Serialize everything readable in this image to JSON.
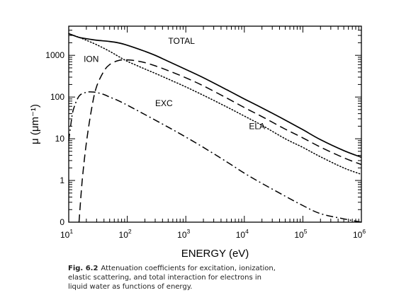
{
  "caption": {
    "fig_label": "Fig.  6.2",
    "text": "Attenuation coefficients for excitation, ionization, elastic scattering, and total interaction for electrons in liquid water as functions of energy."
  },
  "chart_data": {
    "type": "line",
    "title": "",
    "xlabel": "ENERGY  (eV)",
    "ylabel": "μ  (μm⁻¹)",
    "xscale": "log",
    "yscale": "log",
    "xlim": [
      10,
      1000000
    ],
    "ylim": [
      0.1,
      5000
    ],
    "x_ticks": [
      {
        "value": 10,
        "base": "10",
        "exp": "1"
      },
      {
        "value": 100,
        "base": "10",
        "exp": "2"
      },
      {
        "value": 1000,
        "base": "10",
        "exp": "3"
      },
      {
        "value": 10000,
        "base": "10",
        "exp": "4"
      },
      {
        "value": 100000,
        "base": "10",
        "exp": "5"
      },
      {
        "value": 1000000,
        "base": "10",
        "exp": "6"
      }
    ],
    "y_ticks": [
      {
        "value": 0.1,
        "label": "0"
      },
      {
        "value": 1,
        "label": "1"
      },
      {
        "value": 10,
        "label": "10"
      },
      {
        "value": 100,
        "label": "100"
      },
      {
        "value": 1000,
        "label": "1000"
      }
    ],
    "grid": false,
    "series": [
      {
        "name": "TOTAL",
        "style": "solid",
        "label_at": [
          500,
          1900
        ],
        "x": [
          10,
          12,
          15,
          20,
          30,
          50,
          70,
          100,
          200,
          300,
          500,
          1000,
          2000,
          5000,
          10000,
          20000,
          50000,
          100000,
          200000,
          500000,
          1000000
        ],
        "y": [
          3300,
          3000,
          2700,
          2500,
          2300,
          2150,
          2000,
          1750,
          1250,
          1000,
          720,
          460,
          290,
          150,
          90,
          55,
          28,
          16.5,
          9.5,
          5.2,
          3.6
        ]
      },
      {
        "name": "ION",
        "style": "dashed",
        "label_at": [
          18,
          700
        ],
        "x": [
          15,
          17,
          20,
          25,
          30,
          40,
          50,
          70,
          100,
          150,
          200,
          300,
          500,
          1000,
          2000,
          5000,
          10000,
          20000,
          50000,
          100000,
          200000,
          500000,
          1000000
        ],
        "y": [
          0.1,
          1,
          8,
          60,
          180,
          420,
          600,
          750,
          780,
          730,
          670,
          560,
          430,
          290,
          185,
          95,
          56,
          34,
          17,
          10.5,
          6.3,
          3.5,
          2.4
        ]
      },
      {
        "name": "ELA",
        "style": "dotted",
        "label_at": [
          12000,
          17
        ],
        "x": [
          10,
          15,
          20,
          30,
          50,
          70,
          100,
          150,
          200,
          300,
          500,
          1000,
          2000,
          5000,
          10000,
          20000,
          50000,
          100000,
          200000,
          500000,
          1000000
        ],
        "y": [
          3300,
          2700,
          2300,
          1800,
          1250,
          950,
          720,
          560,
          470,
          370,
          270,
          175,
          110,
          58,
          35,
          21,
          10,
          6.2,
          3.7,
          2.0,
          1.4
        ]
      },
      {
        "name": "EXC",
        "style": "dashdot",
        "label_at": [
          300,
          60
        ],
        "x": [
          10,
          11,
          12,
          15,
          20,
          25,
          30,
          40,
          50,
          70,
          100,
          200,
          500,
          1000,
          2000,
          5000,
          10000,
          20000,
          50000,
          100000,
          200000,
          500000,
          1000000
        ],
        "y": [
          9,
          25,
          50,
          105,
          130,
          132,
          128,
          115,
          100,
          82,
          64,
          38,
          19,
          11,
          6.2,
          2.8,
          1.5,
          0.85,
          0.42,
          0.25,
          0.16,
          0.12,
          0.1
        ]
      }
    ]
  }
}
